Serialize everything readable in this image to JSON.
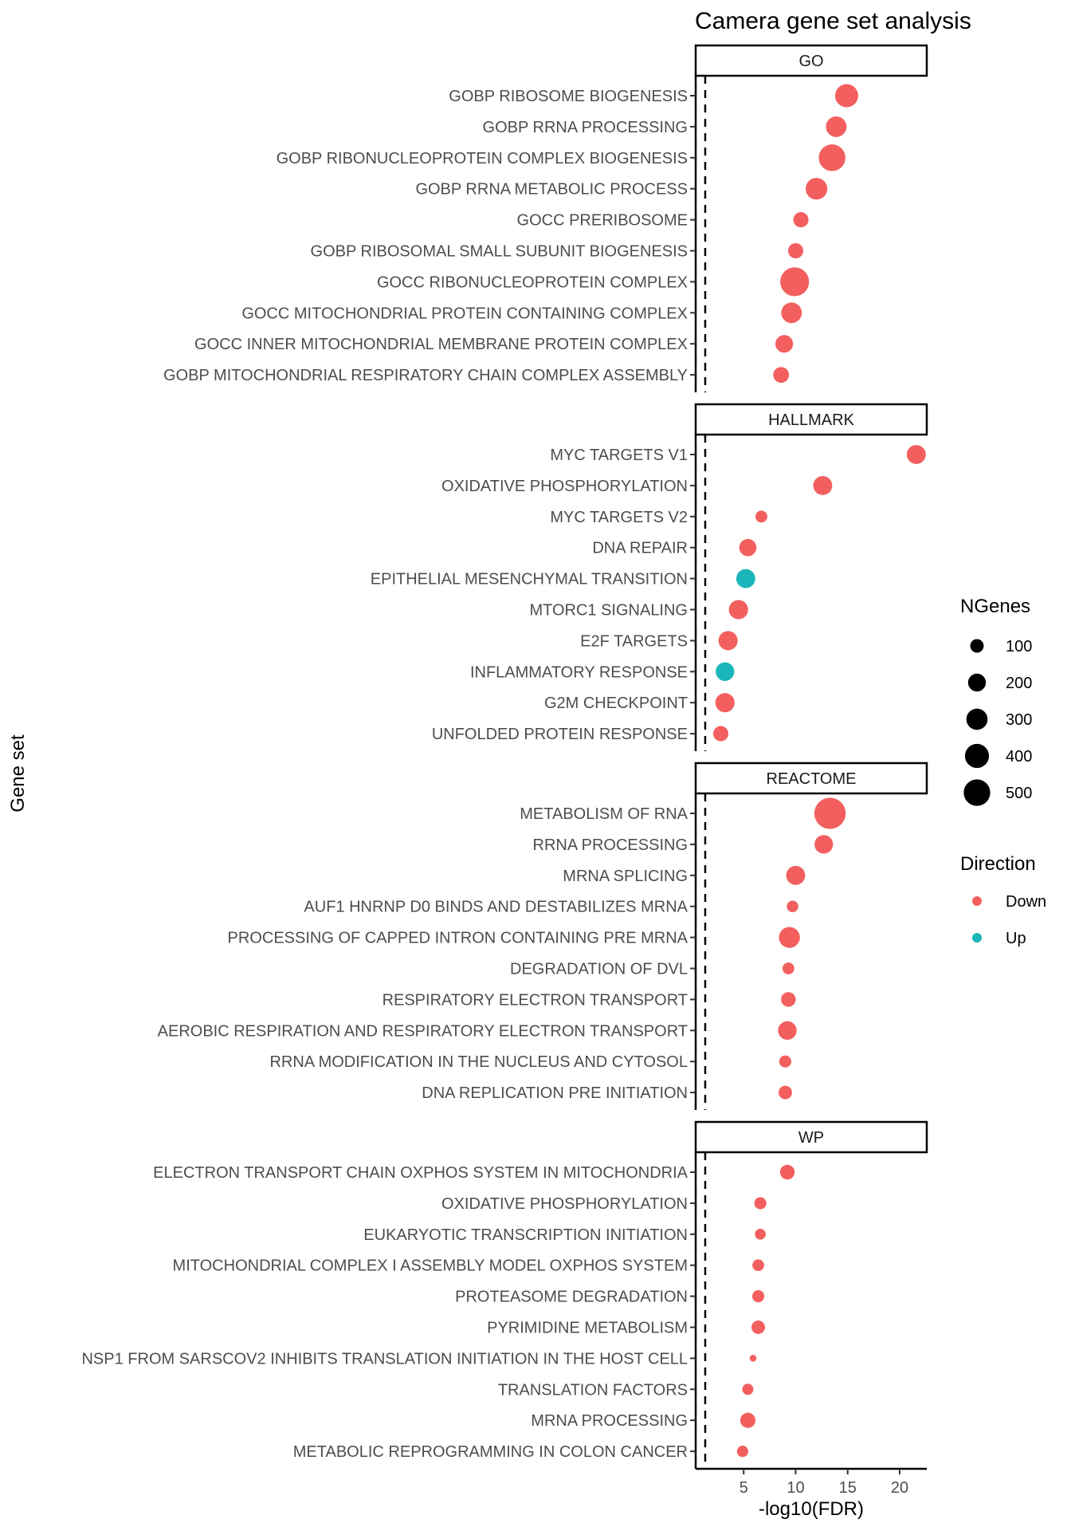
{
  "chart_data": {
    "type": "scatter",
    "title": "Camera gene set analysis",
    "xlabel": "-log10(FDR)",
    "ylabel": "Gene set",
    "xlim": [
      0.3,
      22.6
    ],
    "xticks": [
      5,
      10,
      15,
      20
    ],
    "threshold_line": 1.3,
    "grid": false,
    "colors": {
      "Down": "#F35F5F",
      "Up": "#1BB6B9"
    },
    "size_legend": {
      "title": "NGenes",
      "values": [
        100,
        200,
        300,
        400,
        500
      ]
    },
    "color_legend": {
      "title": "Direction",
      "values": [
        "Down",
        "Up"
      ]
    },
    "legend_position": "right",
    "panels": [
      {
        "name": "GO",
        "rows": [
          {
            "label": "GOBP RIBOSOME BIOGENESIS",
            "x": 14.9,
            "ngenes": 300,
            "direction": "Down"
          },
          {
            "label": "GOBP RRNA PROCESSING",
            "x": 13.9,
            "ngenes": 230,
            "direction": "Down"
          },
          {
            "label": "GOBP RIBONUCLEOPROTEIN COMPLEX BIOGENESIS",
            "x": 13.5,
            "ngenes": 420,
            "direction": "Down"
          },
          {
            "label": "GOBP RRNA METABOLIC PROCESS",
            "x": 12.0,
            "ngenes": 260,
            "direction": "Down"
          },
          {
            "label": "GOCC PRERIBOSOME",
            "x": 10.5,
            "ngenes": 110,
            "direction": "Down"
          },
          {
            "label": "GOBP RIBOSOMAL SMALL SUBUNIT BIOGENESIS",
            "x": 10.0,
            "ngenes": 110,
            "direction": "Down"
          },
          {
            "label": "GOCC RIBONUCLEOPROTEIN COMPLEX",
            "x": 9.9,
            "ngenes": 500,
            "direction": "Down"
          },
          {
            "label": "GOCC MITOCHONDRIAL PROTEIN CONTAINING COMPLEX",
            "x": 9.6,
            "ngenes": 230,
            "direction": "Down"
          },
          {
            "label": "GOCC INNER MITOCHONDRIAL MEMBRANE PROTEIN COMPLEX",
            "x": 8.9,
            "ngenes": 160,
            "direction": "Down"
          },
          {
            "label": "GOBP MITOCHONDRIAL RESPIRATORY CHAIN COMPLEX ASSEMBLY",
            "x": 8.6,
            "ngenes": 120,
            "direction": "Down"
          }
        ]
      },
      {
        "name": "HALLMARK",
        "rows": [
          {
            "label": "MYC TARGETS V1",
            "x": 21.6,
            "ngenes": 190,
            "direction": "Down"
          },
          {
            "label": "OXIDATIVE PHOSPHORYLATION",
            "x": 12.6,
            "ngenes": 190,
            "direction": "Down"
          },
          {
            "label": "MYC TARGETS V2",
            "x": 6.7,
            "ngenes": 58,
            "direction": "Down"
          },
          {
            "label": "DNA REPAIR",
            "x": 5.4,
            "ngenes": 150,
            "direction": "Down"
          },
          {
            "label": "EPITHELIAL MESENCHYMAL TRANSITION",
            "x": 5.2,
            "ngenes": 190,
            "direction": "Up"
          },
          {
            "label": "MTORC1 SIGNALING",
            "x": 4.5,
            "ngenes": 195,
            "direction": "Down"
          },
          {
            "label": "E2F TARGETS",
            "x": 3.5,
            "ngenes": 195,
            "direction": "Down"
          },
          {
            "label": "INFLAMMATORY RESPONSE",
            "x": 3.2,
            "ngenes": 180,
            "direction": "Up"
          },
          {
            "label": "G2M CHECKPOINT",
            "x": 3.2,
            "ngenes": 195,
            "direction": "Down"
          },
          {
            "label": "UNFOLDED PROTEIN RESPONSE",
            "x": 2.8,
            "ngenes": 110,
            "direction": "Down"
          }
        ]
      },
      {
        "name": "REACTOME",
        "rows": [
          {
            "label": "METABOLISM OF RNA",
            "x": 13.3,
            "ngenes": 600,
            "direction": "Down"
          },
          {
            "label": "RRNA PROCESSING",
            "x": 12.7,
            "ngenes": 180,
            "direction": "Down"
          },
          {
            "label": "MRNA SPLICING",
            "x": 10.0,
            "ngenes": 190,
            "direction": "Down"
          },
          {
            "label": "AUF1 HNRNP D0 BINDS AND DESTABILIZES MRNA",
            "x": 9.7,
            "ngenes": 53,
            "direction": "Down"
          },
          {
            "label": "PROCESSING OF CAPPED INTRON CONTAINING PRE MRNA",
            "x": 9.4,
            "ngenes": 240,
            "direction": "Down"
          },
          {
            "label": "DEGRADATION OF DVL",
            "x": 9.3,
            "ngenes": 56,
            "direction": "Down"
          },
          {
            "label": "RESPIRATORY ELECTRON TRANSPORT",
            "x": 9.3,
            "ngenes": 100,
            "direction": "Down"
          },
          {
            "label": "AEROBIC RESPIRATION AND RESPIRATORY ELECTRON TRANSPORT",
            "x": 9.2,
            "ngenes": 180,
            "direction": "Down"
          },
          {
            "label": "RRNA MODIFICATION IN THE NUCLEUS AND CYTOSOL",
            "x": 9.0,
            "ngenes": 60,
            "direction": "Down"
          },
          {
            "label": "DNA REPLICATION PRE INITIATION",
            "x": 9.0,
            "ngenes": 80,
            "direction": "Down"
          }
        ]
      },
      {
        "name": "WP",
        "rows": [
          {
            "label": "ELECTRON TRANSPORT CHAIN OXPHOS SYSTEM IN MITOCHONDRIA",
            "x": 9.2,
            "ngenes": 100,
            "direction": "Down"
          },
          {
            "label": "OXIDATIVE PHOSPHORYLATION",
            "x": 6.6,
            "ngenes": 60,
            "direction": "Down"
          },
          {
            "label": "EUKARYOTIC TRANSCRIPTION INITIATION",
            "x": 6.6,
            "ngenes": 45,
            "direction": "Down"
          },
          {
            "label": "MITOCHONDRIAL COMPLEX I ASSEMBLY MODEL OXPHOS SYSTEM",
            "x": 6.4,
            "ngenes": 55,
            "direction": "Down"
          },
          {
            "label": "PROTEASOME DEGRADATION",
            "x": 6.4,
            "ngenes": 60,
            "direction": "Down"
          },
          {
            "label": "PYRIMIDINE METABOLISM",
            "x": 6.4,
            "ngenes": 80,
            "direction": "Down"
          },
          {
            "label": "NSP1 FROM SARSCOV2 INHIBITS TRANSLATION INITIATION IN THE HOST CELL",
            "x": 5.9,
            "ngenes": 10,
            "direction": "Down"
          },
          {
            "label": "TRANSLATION FACTORS",
            "x": 5.4,
            "ngenes": 48,
            "direction": "Down"
          },
          {
            "label": "MRNA PROCESSING",
            "x": 5.4,
            "ngenes": 110,
            "direction": "Down"
          },
          {
            "label": "METABOLIC REPROGRAMMING IN COLON CANCER",
            "x": 4.9,
            "ngenes": 50,
            "direction": "Down"
          }
        ]
      }
    ]
  }
}
